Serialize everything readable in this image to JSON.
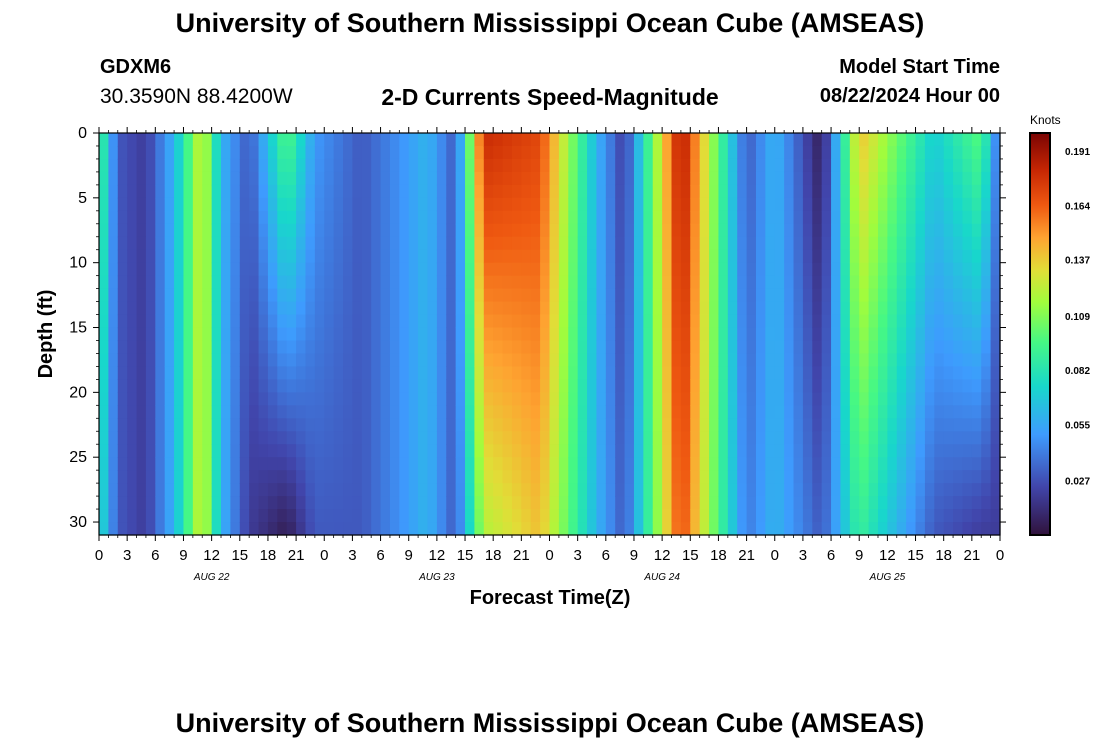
{
  "header": {
    "title": "University of Southern Mississippi Ocean Cube (AMSEAS)",
    "station": "GDXM6",
    "coords": "30.3590N  88.4200W",
    "subtitle": "2-D Currents Speed-Magnitude",
    "start_label": "Model Start Time",
    "start_value": "08/22/2024 Hour 00"
  },
  "footer": {
    "title": "University of Southern Mississippi Ocean Cube (AMSEAS)"
  },
  "chart_data": {
    "type": "heatmap",
    "title": "2-D Currents Speed-Magnitude",
    "xlabel": "Forecast Time(Z)",
    "ylabel": "Depth (ft)",
    "units": "Knots",
    "x_range_hours": [
      0,
      96
    ],
    "y_range_ft": [
      0,
      31
    ],
    "x_ticks": [
      "0",
      "3",
      "6",
      "9",
      "12",
      "15",
      "18",
      "21",
      "0",
      "3",
      "6",
      "9",
      "12",
      "15",
      "18",
      "21",
      "0",
      "3",
      "6",
      "9",
      "12",
      "15",
      "18",
      "21",
      "0",
      "3",
      "6",
      "9",
      "12",
      "15",
      "18",
      "21",
      "0"
    ],
    "y_ticks": [
      "0",
      "5",
      "10",
      "15",
      "20",
      "25",
      "30"
    ],
    "y_tick_values": [
      0,
      5,
      10,
      15,
      20,
      25,
      30
    ],
    "day_labels": [
      "AUG 22",
      "AUG 23",
      "AUG 24",
      "AUG 25"
    ],
    "colorbar": {
      "min": 0.0,
      "max": 0.2,
      "ticks": [
        "0.191",
        "0.164",
        "0.137",
        "0.109",
        "0.082",
        "0.055",
        "0.027"
      ],
      "tick_values": [
        0.191,
        0.164,
        0.137,
        0.109,
        0.082,
        0.055,
        0.027
      ]
    },
    "speed_by_hour_surface_to_bottom": [
      {
        "hour": 0,
        "surface": 0.1,
        "bottom": 0.08
      },
      {
        "hour": 2,
        "surface": 0.03,
        "bottom": 0.03
      },
      {
        "hour": 5,
        "surface": 0.02,
        "bottom": 0.02
      },
      {
        "hour": 8,
        "surface": 0.06,
        "bottom": 0.06
      },
      {
        "hour": 11,
        "surface": 0.13,
        "bottom": 0.13
      },
      {
        "hour": 13,
        "surface": 0.06,
        "bottom": 0.06
      },
      {
        "hour": 16,
        "surface": 0.03,
        "bottom": 0.02
      },
      {
        "hour": 20,
        "surface": 0.1,
        "bottom": 0.005
      },
      {
        "hour": 23,
        "surface": 0.05,
        "bottom": 0.03
      },
      {
        "hour": 28,
        "surface": 0.03,
        "bottom": 0.03
      },
      {
        "hour": 35,
        "surface": 0.06,
        "bottom": 0.06
      },
      {
        "hour": 38,
        "surface": 0.03,
        "bottom": 0.03
      },
      {
        "hour": 41,
        "surface": 0.18,
        "bottom": 0.12
      },
      {
        "hour": 47,
        "surface": 0.17,
        "bottom": 0.14
      },
      {
        "hour": 53,
        "surface": 0.06,
        "bottom": 0.06
      },
      {
        "hour": 56,
        "surface": 0.02,
        "bottom": 0.03
      },
      {
        "hour": 62,
        "surface": 0.19,
        "bottom": 0.17
      },
      {
        "hour": 69,
        "surface": 0.03,
        "bottom": 0.04
      },
      {
        "hour": 72,
        "surface": 0.06,
        "bottom": 0.06
      },
      {
        "hour": 77,
        "surface": 0.005,
        "bottom": 0.03
      },
      {
        "hour": 81,
        "surface": 0.14,
        "bottom": 0.09
      },
      {
        "hour": 89,
        "surface": 0.07,
        "bottom": 0.03
      },
      {
        "hour": 94,
        "surface": 0.1,
        "bottom": 0.02
      },
      {
        "hour": 96,
        "surface": 0.03,
        "bottom": 0.02
      }
    ]
  }
}
